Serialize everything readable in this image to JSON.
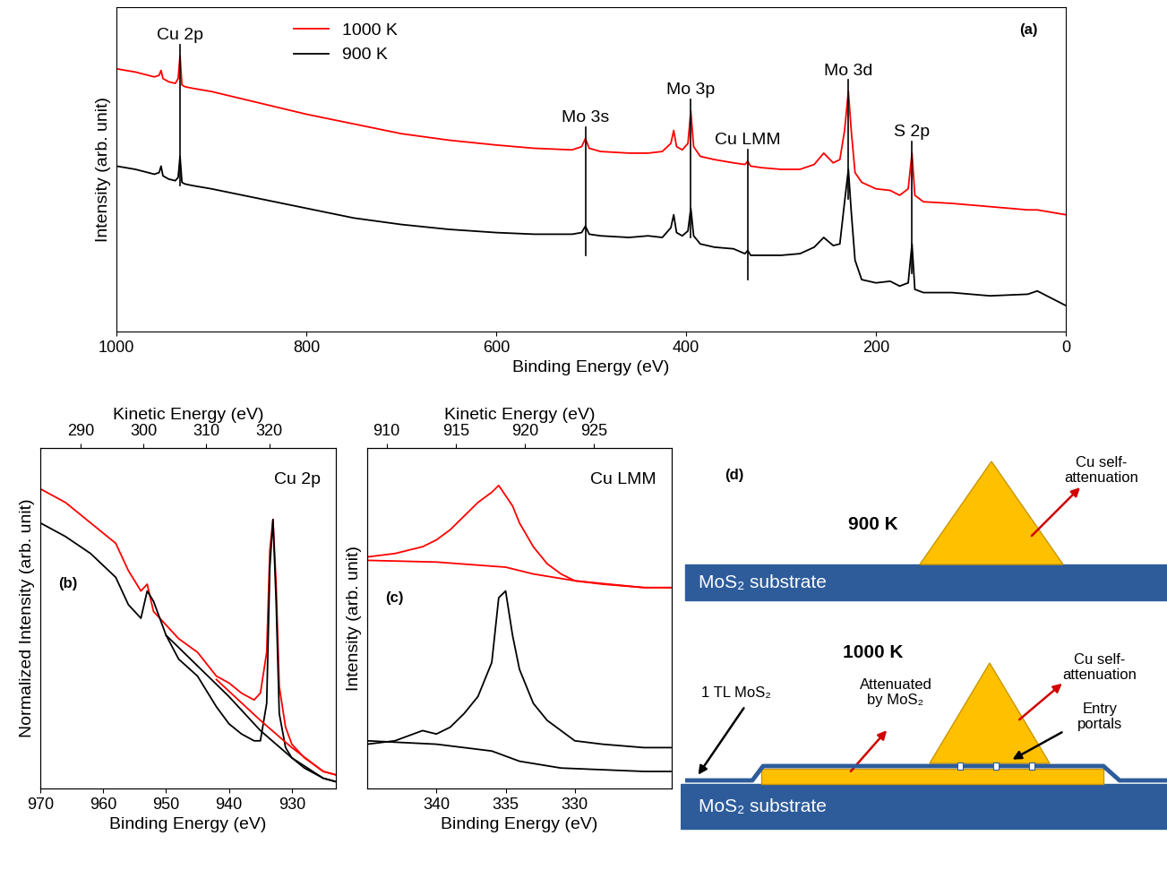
{
  "chart_data": [
    {
      "type": "line",
      "panel_label": "(a)",
      "x_label": "Binding Energy (eV)",
      "y_label": "Intensity (arb. unit)",
      "xlim": [
        1000,
        0
      ],
      "xticks": [
        0,
        200,
        400,
        600,
        800,
        1000
      ],
      "ylim": [
        0,
        100
      ],
      "tick_labels": "x",
      "legend": "upper left",
      "x": [
        1000,
        980,
        960,
        955,
        953,
        951,
        945,
        938,
        935,
        933,
        931,
        928,
        920,
        900,
        850,
        800,
        750,
        700,
        650,
        600,
        560,
        520,
        510,
        506,
        502,
        490,
        460,
        440,
        425,
        416,
        413,
        410,
        404,
        398,
        395,
        392,
        385,
        370,
        350,
        338,
        335,
        332,
        320,
        300,
        280,
        265,
        255,
        245,
        238,
        233,
        229,
        226,
        222,
        215,
        200,
        185,
        175,
        166,
        162,
        159,
        150,
        120,
        80,
        40,
        30,
        20,
        0
      ],
      "series": [
        {
          "name": "1000 K",
          "color": "#ff0000",
          "values": [
            81,
            80,
            78.5,
            79,
            80.5,
            78,
            77,
            76.5,
            78,
            85,
            76,
            75.5,
            75,
            74,
            70.5,
            67,
            64,
            61,
            59,
            57.5,
            56.5,
            56,
            57,
            59.5,
            56.5,
            55.5,
            55,
            55,
            55.5,
            58,
            62,
            57,
            56,
            58,
            68,
            57,
            54,
            53,
            52,
            51.5,
            52.5,
            51,
            50.5,
            50,
            50,
            51.5,
            55,
            52,
            53,
            62,
            74,
            62,
            49,
            46,
            44,
            43.5,
            42,
            44,
            55,
            42,
            40,
            39.5,
            38.5,
            37.5,
            37.5,
            37,
            36
          ]
        },
        {
          "name": "900 K",
          "color": "#000000",
          "values": [
            51,
            50,
            48.5,
            49,
            51,
            48,
            47,
            46.5,
            47.5,
            54,
            46,
            45.5,
            45,
            44,
            41,
            38,
            35,
            33,
            31.5,
            30.5,
            30,
            30,
            30.5,
            32.5,
            30,
            29.5,
            29,
            29.5,
            29,
            32,
            36,
            30.5,
            29.5,
            31,
            38,
            29.5,
            27,
            26,
            25.5,
            24,
            25,
            23.5,
            23.5,
            23.5,
            24,
            26,
            29,
            26.5,
            27,
            40,
            50,
            37,
            22,
            16,
            15,
            15.5,
            14,
            15,
            27,
            13,
            12,
            12,
            11,
            11.5,
            12.5,
            11,
            8
          ]
        }
      ],
      "annotations": [
        {
          "text": "Cu 2p",
          "x": 933
        },
        {
          "text": "Mo 3s",
          "x": 506
        },
        {
          "text": "Mo 3p",
          "x": 395
        },
        {
          "text": "Cu LMM",
          "x": 335
        },
        {
          "text": "Mo 3d",
          "x": 229
        },
        {
          "text": "S 2p",
          "x": 162
        }
      ]
    },
    {
      "type": "line",
      "panel_label": "(b)",
      "x_label": "Binding Energy (eV)",
      "x2_label": "Kinetic Energy (eV)",
      "y_label": "Normalized Intensity (arb. unit)",
      "xlim": [
        970,
        923
      ],
      "xticks": [
        930,
        940,
        950,
        960,
        970
      ],
      "x2lim": [
        283.6,
        330.6
      ],
      "x2ticks": [
        290,
        300,
        310,
        320
      ],
      "ylim": [
        0,
        100
      ],
      "tick_labels": "x",
      "series": [
        {
          "color": "#ff0000",
          "x": [
            970,
            966,
            962,
            958,
            956,
            954,
            953,
            952,
            950,
            948,
            945,
            942,
            940,
            938,
            936,
            935,
            934,
            933.5,
            933,
            932.5,
            932,
            931,
            930,
            928,
            925,
            923
          ],
          "values": [
            88,
            84,
            78,
            72,
            64,
            58,
            60,
            52,
            48,
            44,
            40,
            33,
            31,
            28,
            26,
            28,
            40,
            70,
            79,
            60,
            30,
            18,
            13,
            9,
            5,
            4
          ]
        },
        {
          "color": "#000000",
          "x": [
            970,
            966,
            962,
            958,
            956,
            954,
            953,
            952,
            950,
            948,
            945,
            942,
            940,
            938,
            936,
            935,
            934,
            933.5,
            933,
            932.5,
            932,
            931,
            930,
            928,
            925,
            923
          ],
          "values": [
            78,
            74,
            69,
            62,
            54,
            50,
            58,
            55,
            45,
            38,
            33,
            24,
            19,
            16,
            14,
            14,
            25,
            65,
            79,
            55,
            22,
            12,
            9,
            6,
            3,
            2
          ]
        },
        {
          "color": "#ff0000",
          "x": [
            942,
            935,
            930,
            925,
            923
          ],
          "values": [
            32,
            20,
            12,
            5,
            4
          ]
        },
        {
          "color": "#000000",
          "x": [
            950,
            940,
            935,
            930,
            925,
            923
          ],
          "values": [
            45,
            27,
            17,
            9,
            3,
            2
          ]
        }
      ],
      "annotations": [
        {
          "text": "Cu 2p"
        }
      ]
    },
    {
      "type": "line",
      "panel_label": "(c)",
      "x_label": "Binding Energy (eV)",
      "x2_label": "Kinetic Energy (eV)",
      "y_label": "Intensity (arb. unit)",
      "xlim": [
        345,
        323
      ],
      "xticks": [
        330,
        335,
        340
      ],
      "x2lim": [
        908.6,
        930.6
      ],
      "x2ticks": [
        910,
        915,
        920,
        925
      ],
      "ylim": [
        0,
        100
      ],
      "tick_labels": "x",
      "series": [
        {
          "color": "#ff0000",
          "x": [
            345,
            343,
            341,
            340,
            339,
            338,
            337,
            336,
            335.5,
            335,
            334.5,
            334,
            333,
            332,
            331,
            330,
            328,
            325,
            323
          ],
          "values": [
            68,
            69,
            71,
            73,
            76,
            80,
            84,
            87,
            89,
            86,
            83,
            78,
            71,
            66,
            63,
            61,
            60,
            59,
            59
          ]
        },
        {
          "color": "#000000",
          "x": [
            345,
            343,
            341,
            340,
            339,
            338,
            337,
            336,
            335.5,
            335,
            334.5,
            334,
            333,
            332,
            331,
            330,
            328,
            325,
            323
          ],
          "values": [
            13,
            14,
            17,
            16,
            18,
            22,
            27,
            37,
            56,
            58,
            45,
            35,
            25,
            20,
            17,
            14,
            13,
            12,
            12
          ]
        },
        {
          "color": "#ff0000",
          "x": [
            345,
            340,
            335,
            333,
            330,
            325,
            323
          ],
          "values": [
            67,
            66.5,
            65,
            63,
            61,
            59,
            59
          ]
        },
        {
          "color": "#000000",
          "x": [
            345,
            340,
            336,
            334,
            331,
            325,
            323
          ],
          "values": [
            14,
            13,
            11,
            8,
            6,
            5,
            5
          ]
        }
      ],
      "annotations": [
        {
          "text": "Cu LMM"
        }
      ]
    }
  ],
  "diagram": {
    "label": "(d)",
    "top": {
      "title": "900 K",
      "substrate": "MoS₂ substrate",
      "self_attenuation": "Cu self-\nattenuation"
    },
    "bottom": {
      "title": "1000 K",
      "substrate": "MoS₂ substrate",
      "self_attenuation": "Cu self-\nattenuation",
      "layer": "1 TL MoS₂",
      "attenuated": "Attenuated\nby MoS₂",
      "portals": "Entry\nportals"
    }
  }
}
